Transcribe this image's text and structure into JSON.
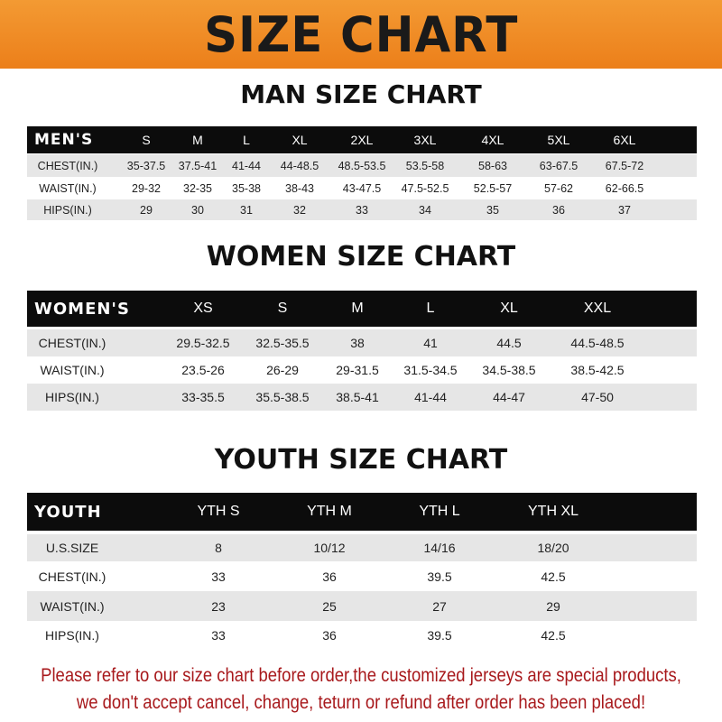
{
  "banner": {
    "title": "SIZE CHART"
  },
  "men": {
    "title": "MAN SIZE CHART",
    "header": [
      "MEN'S",
      "S",
      "M",
      "L",
      "XL",
      "2XL",
      "3XL",
      "4XL",
      "5XL",
      "6XL"
    ],
    "rows": [
      [
        "CHEST(IN.)",
        "35-37.5",
        "37.5-41",
        "41-44",
        "44-48.5",
        "48.5-53.5",
        "53.5-58",
        "58-63",
        "63-67.5",
        "67.5-72"
      ],
      [
        "WAIST(IN.)",
        "29-32",
        "32-35",
        "35-38",
        "38-43",
        "43-47.5",
        "47.5-52.5",
        "52.5-57",
        "57-62",
        "62-66.5"
      ],
      [
        "HIPS(IN.)",
        "29",
        "30",
        "31",
        "32",
        "33",
        "34",
        "35",
        "36",
        "37"
      ]
    ]
  },
  "women": {
    "title": "WOMEN SIZE CHART",
    "header": [
      "WOMEN'S",
      "XS",
      "S",
      "M",
      "L",
      "XL",
      "XXL"
    ],
    "rows": [
      [
        "CHEST(IN.)",
        "29.5-32.5",
        "32.5-35.5",
        "38",
        "41",
        "44.5",
        "44.5-48.5"
      ],
      [
        "WAIST(IN.)",
        "23.5-26",
        "26-29",
        "29-31.5",
        "31.5-34.5",
        "34.5-38.5",
        "38.5-42.5"
      ],
      [
        "HIPS(IN.)",
        "33-35.5",
        "35.5-38.5",
        "38.5-41",
        "41-44",
        "44-47",
        "47-50"
      ]
    ]
  },
  "youth": {
    "title": "YOUTH SIZE CHART",
    "header": [
      "YOUTH",
      "YTH S",
      "YTH M",
      "YTH L",
      "YTH XL"
    ],
    "rows": [
      [
        "U.S.SIZE",
        "8",
        "10/12",
        "14/16",
        "18/20"
      ],
      [
        "CHEST(IN.)",
        "33",
        "36",
        "39.5",
        "42.5"
      ],
      [
        "WAIST(IN.)",
        "23",
        "25",
        "27",
        "29"
      ],
      [
        "HIPS(IN.)",
        "33",
        "36",
        "39.5",
        "42.5"
      ]
    ]
  },
  "note": {
    "line1": "Please refer to our size chart before order,the customized jerseys are special products,",
    "line2": "we don't accept cancel, change, teturn or refund after order has been placed!"
  },
  "colors": {
    "banner": "#ef8a25",
    "header_row": "#0c0c0c",
    "stripe": "#e6e6e6",
    "note": "#a8191c"
  }
}
